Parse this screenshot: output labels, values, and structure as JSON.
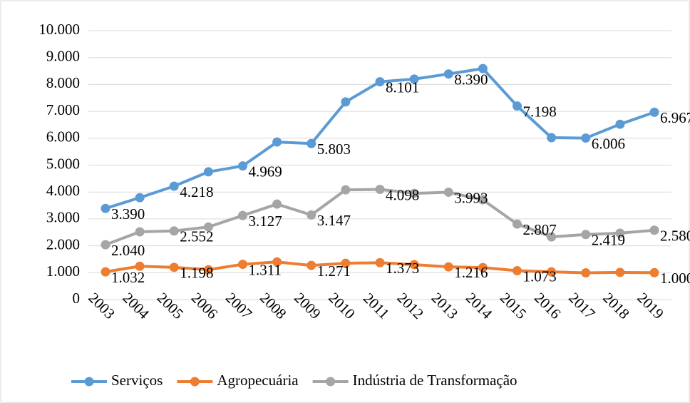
{
  "chart_data": {
    "type": "line",
    "categories": [
      "2003",
      "2004",
      "2005",
      "2006",
      "2007",
      "2008",
      "2009",
      "2010",
      "2011",
      "2012",
      "2013",
      "2014",
      "2015",
      "2016",
      "2017",
      "2018",
      "2019"
    ],
    "series": [
      {
        "name": "Serviços",
        "color": "#5b9bd5",
        "values": [
          3390,
          3790,
          4218,
          4750,
          4969,
          5860,
          5803,
          7350,
          8101,
          8200,
          8390,
          8590,
          7198,
          6020,
          6006,
          6520,
          6967
        ],
        "value_labels": [
          "3.390",
          null,
          "4.218",
          null,
          "4.969",
          null,
          "5.803",
          null,
          "8.101",
          null,
          "8.390",
          null,
          "7.198",
          null,
          "6.006",
          null,
          "6.967"
        ]
      },
      {
        "name": "Agropecuária",
        "color": "#ed7d31",
        "values": [
          1032,
          1240,
          1198,
          1110,
          1311,
          1400,
          1271,
          1350,
          1373,
          1300,
          1216,
          1190,
          1073,
          1030,
          994,
          1010,
          1000
        ],
        "value_labels": [
          "1.032",
          null,
          "1.198",
          null,
          "1.311",
          null,
          "1.271",
          null,
          "1.373",
          null,
          "1.216",
          null,
          "1.073",
          null,
          null,
          null,
          "1.000"
        ]
      },
      {
        "name": "Indústria de Transformação",
        "color": "#a5a5a5",
        "values": [
          2040,
          2520,
          2552,
          2700,
          3127,
          3550,
          3147,
          4080,
          4098,
          3950,
          3993,
          3710,
          2807,
          2330,
          2419,
          2470,
          2580
        ],
        "value_labels": [
          "2.040",
          null,
          "2.552",
          null,
          "3.127",
          null,
          "3.147",
          null,
          "4.098",
          null,
          "3.993",
          null,
          "2.807",
          null,
          "2.419",
          null,
          "2.580"
        ]
      }
    ],
    "ylim": [
      0,
      10000
    ],
    "yticks": [
      0,
      {
        "value": 1000,
        "label": "1.000"
      },
      {
        "value": 2000,
        "label": "2.000"
      },
      {
        "value": 3000,
        "label": "3.000"
      },
      {
        "value": 4000,
        "label": "4.000"
      },
      {
        "value": 5000,
        "label": "5.000"
      },
      {
        "value": 6000,
        "label": "6.000"
      },
      {
        "value": 7000,
        "label": "7.000"
      },
      {
        "value": 8000,
        "label": "8.000"
      },
      {
        "value": 9000,
        "label": "9.000"
      },
      {
        "value": 10000,
        "label": "10.000"
      }
    ],
    "grid": true,
    "legend": "bottom"
  }
}
